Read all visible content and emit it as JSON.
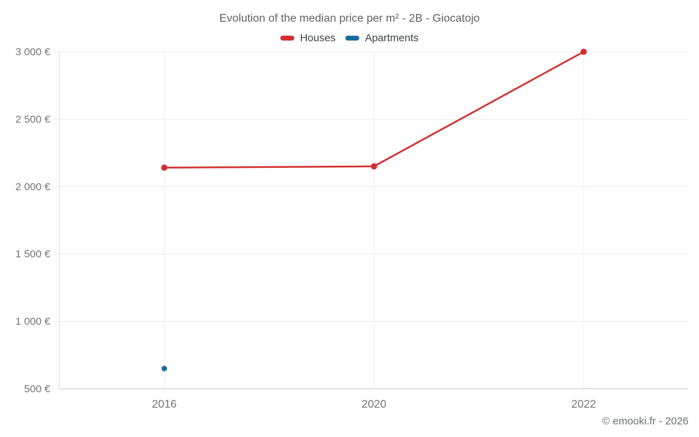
{
  "title": "Evolution of the median price per m² - 2B - Giocatojo",
  "footer": "© emooki.fr - 2026",
  "colors": {
    "houses": "#d32f2f",
    "apartments": "#1a6da4",
    "grid": "#ececec",
    "axis_y": "#dcdcdc",
    "axis_x": "#c9c9c9",
    "title_text": "#5f6066",
    "tick_text": "#757575",
    "legend_text": "#3c4043",
    "footer_text": "#6b6f72"
  },
  "chart_data": {
    "type": "line",
    "title": "Evolution of the median price per m² - 2B - Giocatojo",
    "categories": [
      "2016",
      "2020",
      "2022"
    ],
    "series": [
      {
        "name": "Houses",
        "color": "#d32f2f",
        "values": [
          2140,
          2150,
          3000
        ],
        "point_radius": 4.5
      },
      {
        "name": "Apartments",
        "color": "#1a6da4",
        "values": [
          650,
          null,
          null
        ],
        "point_radius": 4
      }
    ],
    "xlabel": "",
    "ylabel": "",
    "ylim": [
      500,
      3000
    ],
    "ytick_values": [
      500,
      1000,
      1500,
      2000,
      2500,
      3000
    ],
    "ytick_labels": [
      "500 €",
      "1 000 €",
      "1 500 €",
      "2 000 €",
      "2 500 €",
      "3 000 €"
    ],
    "grid": true,
    "legend_position": "top",
    "currency": "€"
  }
}
